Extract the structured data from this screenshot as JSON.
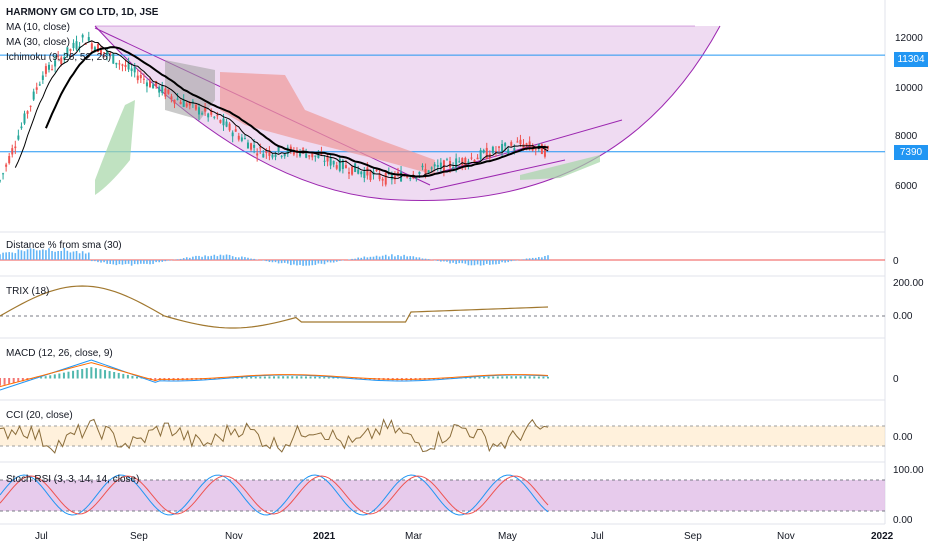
{
  "header": {
    "title": "HARMONY GM CO LTD, 1D, JSE",
    "ma10": "MA (10, close)",
    "ma30": "MA (30, close)",
    "ichimoku": "Ichimoku (9, 26, 52, 26)"
  },
  "price_axis": {
    "ticks": [
      "12000",
      "10000",
      "8000",
      "6000"
    ],
    "badges": [
      "11304",
      "7390"
    ]
  },
  "time_axis": {
    "ticks": [
      "Jul",
      "Sep",
      "Nov",
      "2021",
      "Mar",
      "May",
      "Jul",
      "Sep",
      "Nov",
      "2022"
    ]
  },
  "panels": {
    "dist": {
      "label": "Distance % from sma (30)",
      "ticks": [
        "0"
      ]
    },
    "trix": {
      "label": "TRIX (18)",
      "ticks": [
        "200.00",
        "0.00"
      ]
    },
    "macd": {
      "label": "MACD (12, 26, close, 9)",
      "ticks": [
        "0"
      ]
    },
    "cci": {
      "label": "CCI (20, close)",
      "ticks": [
        "0.00"
      ]
    },
    "stoch": {
      "label": "Stoch RSI (3, 3, 14, 14, close)",
      "ticks": [
        "100.00",
        "0.00"
      ]
    }
  },
  "colors": {
    "hline": "#2196f3",
    "ma10": "#000000",
    "ma30": "#000000",
    "up": "#26a69a",
    "down": "#ef5350",
    "cloud_green": "#a5d6a7",
    "cloud_red": "#ef9a9a",
    "bowl": "#9c27b0",
    "trix": "#a1782f",
    "cci": "#8a6d3b",
    "stoch_k": "#2196f3",
    "stoch_d": "#ef5350",
    "stoch_bg": "#e1bee7",
    "macd_line": "#2196f3",
    "macd_signal": "#ff6d00"
  },
  "chart_data": {
    "type": "candlestick",
    "x": [
      "Jul",
      "Sep",
      "Nov",
      "2021",
      "Mar",
      "May",
      "Jul",
      "Sep",
      "Nov",
      "2022"
    ],
    "y_ticks": [
      12000,
      10000,
      8000,
      6000
    ],
    "horizontal_levels": [
      11304,
      7390
    ],
    "close_trend": [
      [
        0,
        6200
      ],
      [
        0.06,
        10500
      ],
      [
        0.12,
        12000
      ],
      [
        0.18,
        10800
      ],
      [
        0.24,
        9700
      ],
      [
        0.31,
        8700
      ],
      [
        0.37,
        7400
      ],
      [
        0.43,
        7400
      ],
      [
        0.49,
        6800
      ],
      [
        0.55,
        6300
      ],
      [
        0.62,
        6700
      ],
      [
        0.68,
        7200
      ],
      [
        0.74,
        7700
      ],
      [
        0.78,
        7390
      ]
    ]
  }
}
